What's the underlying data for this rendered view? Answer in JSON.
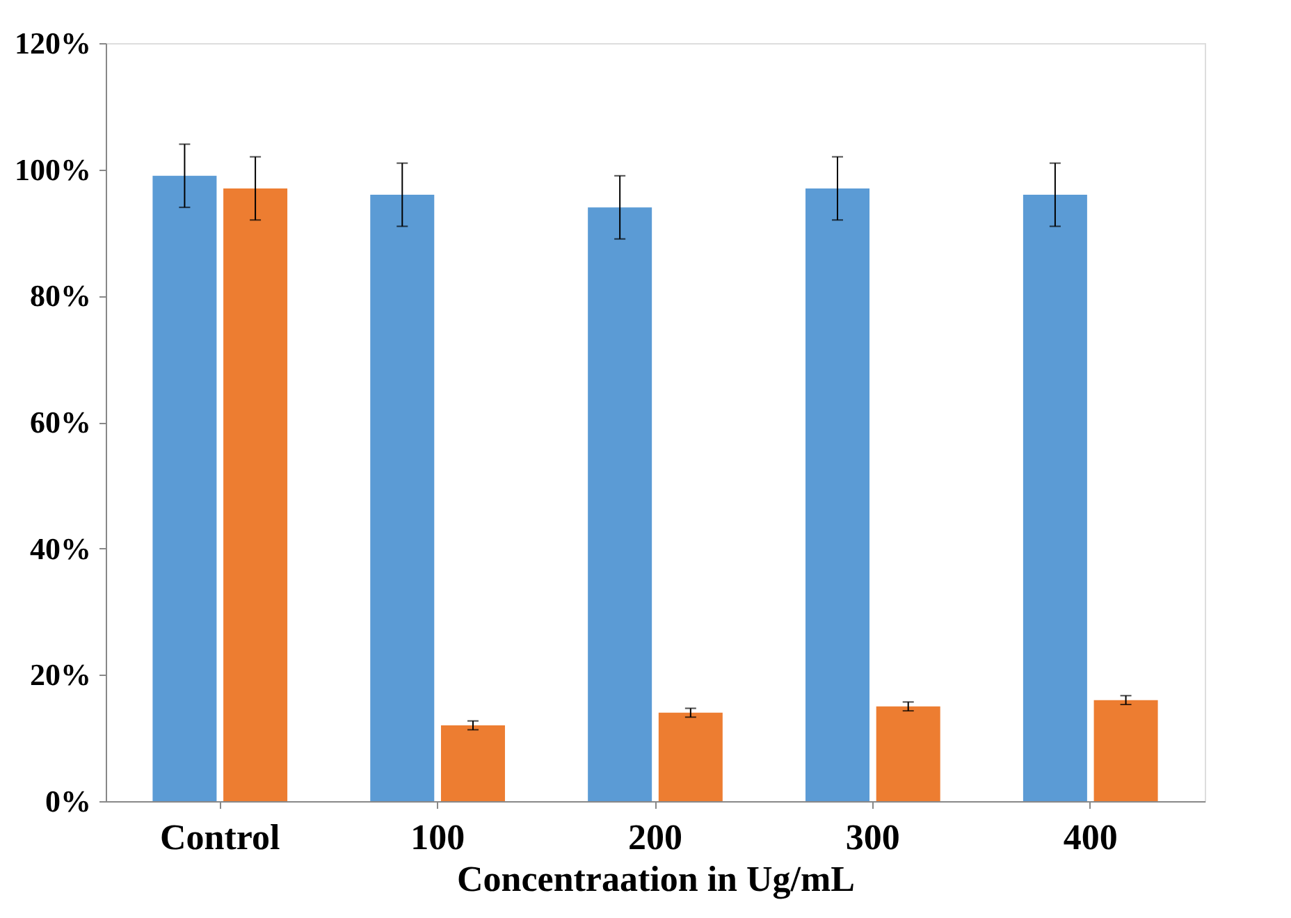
{
  "chart_data": {
    "type": "bar",
    "xlabel": "Concentraation in Ug/mL",
    "categories": [
      "Control",
      "100",
      "200",
      "300",
      "400"
    ],
    "series": [
      {
        "color": "#5b9bd5",
        "values": [
          99,
          96,
          94,
          97,
          96
        ],
        "errors": [
          5,
          5,
          5,
          5,
          5
        ]
      },
      {
        "color": "#ed7d31",
        "values": [
          97,
          12,
          14,
          15,
          16
        ],
        "errors": [
          5,
          0.7,
          0.7,
          0.7,
          0.7
        ]
      }
    ],
    "ylim": [
      0,
      120
    ],
    "yticks": [
      {
        "value": 0,
        "label": "0%"
      },
      {
        "value": 20,
        "label": "20%"
      },
      {
        "value": 40,
        "label": "40%"
      },
      {
        "value": 60,
        "label": "60%"
      },
      {
        "value": 80,
        "label": "80%"
      },
      {
        "value": 100,
        "label": "100%"
      },
      {
        "value": 120,
        "label": "120%"
      }
    ],
    "grid": false,
    "legend": false
  }
}
